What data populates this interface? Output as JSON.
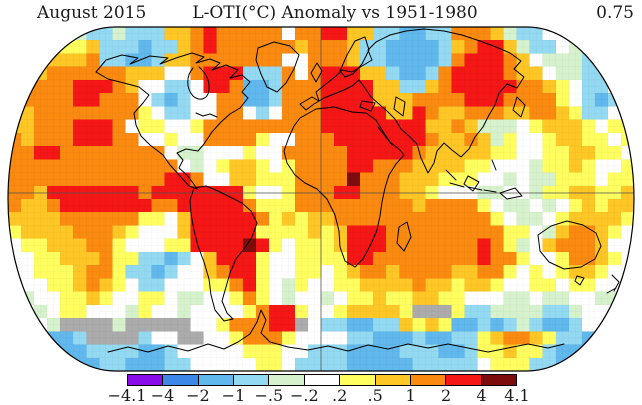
{
  "header": {
    "date_label": "August 2015",
    "title": "L-OTI(°C) Anomaly vs 1951-1980",
    "global_mean": "0.75"
  },
  "chart_data": {
    "type": "heatmap",
    "title": "L-OTI(°C) Anomaly vs 1951-1980",
    "period": "August 2015",
    "baseline": "1951-1980",
    "units": "°C",
    "global_mean_anomaly_c": 0.75,
    "legend_position": "bottom",
    "scale_ticks": [
      "−4.1",
      "−4",
      "−2",
      "−1",
      "−.5",
      "−.2",
      ".2",
      ".5",
      "1",
      "2",
      "4",
      "4.1"
    ],
    "scale_colors": [
      "#8a0ce8",
      "#3d87e8",
      "#61b8ec",
      "#94d9f2",
      "#d6f2cc",
      "#ffffff",
      "#ffff60",
      "#ffc726",
      "#fa8a10",
      "#f51616",
      "#7d0d0d"
    ],
    "nodata_color": "#ababab",
    "palette_key": {
      "P": "#8a0ce8",
      "B": "#3d87e8",
      "b": "#61b8ec",
      "c": "#94d9f2",
      "g": "#d6f2cc",
      "w": "#ffffff",
      "y": "#ffff60",
      "Y": "#ffc726",
      "O": "#fa8a10",
      "R": "#f51616",
      "D": "#7d0d0d",
      "G": "#ababab"
    },
    "grid_cols": 48,
    "grid_rows_count": 26,
    "grid_rows": [
      "wwwwggccgcccYYOROOOOOwOORRYYccbbccOOOYgccwwwwwww",
      "wwwyyyYcccbccYOROOOOOOYOOOYccbbbbcYORRYgccwgcbcw",
      "wyyYYYOccbbcYYOOOOOOOwwOOOYccbbbbcORRROYwgggcbcw",
      "yYYOOOOOOYYYwwORRRcccOwORRRYYcbbcORRRROYYwggccgw",
      "YOOOORRROYwwccwRRObbcOOORRRRYYccYORRRRROOYywccwy",
      "YOOOORROOOwcbcwwOObbcOOORRRRYYYOOOORRROOOOywcbcy",
      "YYOOOOOOOOywccwwOOwcwOOORRRRRYYROYYOOOYYOOYyccwy",
      "YYOOORRROwyywwyOOOOOOOOORRRRRRRRYYOYgggwyYYYywyy",
      "OYOOORRROOwwywwOOOOywwOOORRRRRRROYYOYgywwyYYyywy",
      "OORROOOOOOOOwggwwwywwOOOOORRRRROYYYYYyywwyyYYyyw",
      "OOOOOOOOOOOOOwgwyYYywyOOOORROOOYYYYyywwwgyyYywwy",
      "OOOOOOOOOOOORROwwYYyyyOOOODOOOYYYyyywwgwggyyywyy",
      "OOYRRRRRRRORRRRRRRywwyOOORROOOYYywwwggwwgyyYYyyY",
      "OYYORRRRRRROORRRRROyyyOOOOOOOOOYOOOOywggwgwyYyYY",
      "YYYYOOOOOOyywYRRRRROyYyYYOOOOOOOOOOOOywggwyYYYYy",
      "yYYYYOOOYywwwYRRRRRyyyyYyYRRROOOOOOOOOyywgYOOYyw",
      "wyyYYYOOywwwyyRRRRDRywyyyYRRROOOOOOOROygwYOOOYw w",
      "wwyyYYYOyyccbcwYRRRywwyyyyRROOOOOOOOROOywwyOOYyw",
      "wwyyyYOOyccbcwwYORRywwyywyYOOYOOOOYYOOywywyYYyww",
      "gwwyyYOYywccwwwyyORywgywwyyYYYYOYYyYYywwyywyywwg",
      "wgwwyyYywwyywggwwyOywgwwgwyyYyyYYyywwwggwggwwggw",
      "wwgwyywwwgywwgwwwwyORRywwyYYYYyGGGyccggggccgwwww",
      "cwwgGGGGgGGGGGwwyOOORRGwccbbccYyYybbcbcgcbbcwwgw",
      "wccbbcGGGGcwwGGwwyOOOywwwwccbbbcbbccyYOOYyccbcww",
      "wwcbbbccccbbcwwwwwyyywwcccbbbbcccbbcyyYyycbbccww",
      "wwwccbbccbbbccwwwwwyywccccbbbbbcccccwyyyccbbcwww"
    ],
    "map_frame": {
      "equator_y": 193,
      "prime_meridian_x": 321,
      "x_range": [
        8,
        634
      ],
      "y_range": [
        27,
        371
      ]
    }
  }
}
